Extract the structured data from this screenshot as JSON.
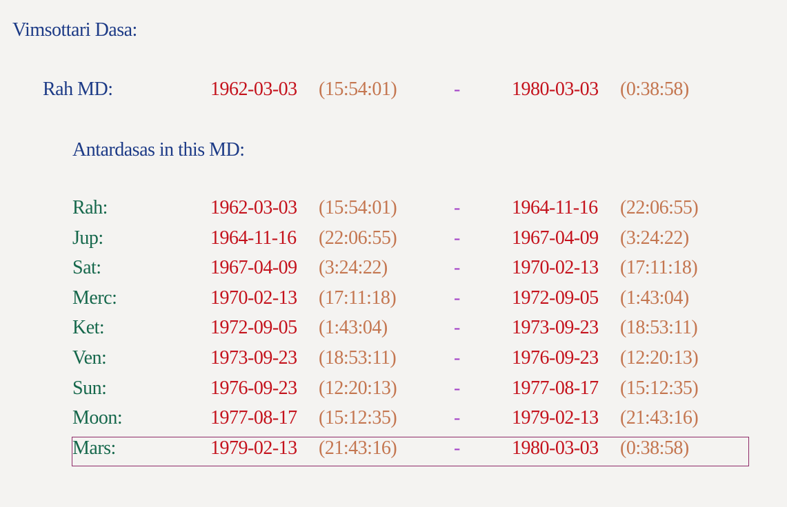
{
  "title": "Vimsottari Dasa:",
  "maha_dasa": {
    "label": "Rah MD:",
    "start_date": "1962-03-03",
    "start_time": "(15:54:01)",
    "separator": "-",
    "end_date": "1980-03-03",
    "end_time": "(0:38:58)"
  },
  "antardasa_heading": "Antardasas in this MD:",
  "antardasas": [
    {
      "label": "Rah:",
      "start_date": "1962-03-03",
      "start_time": "(15:54:01)",
      "separator": "-",
      "end_date": "1964-11-16",
      "end_time": "(22:06:55)"
    },
    {
      "label": "Jup:",
      "start_date": "1964-11-16",
      "start_time": "(22:06:55)",
      "separator": "-",
      "end_date": "1967-04-09",
      "end_time": "(3:24:22)"
    },
    {
      "label": "Sat:",
      "start_date": "1967-04-09",
      "start_time": "(3:24:22)",
      "separator": "-",
      "end_date": "1970-02-13",
      "end_time": "(17:11:18)"
    },
    {
      "label": "Merc:",
      "start_date": "1970-02-13",
      "start_time": "(17:11:18)",
      "separator": "-",
      "end_date": "1972-09-05",
      "end_time": "(1:43:04)"
    },
    {
      "label": "Ket:",
      "start_date": "1972-09-05",
      "start_time": "(1:43:04)",
      "separator": "-",
      "end_date": "1973-09-23",
      "end_time": "(18:53:11)"
    },
    {
      "label": "Ven:",
      "start_date": "1973-09-23",
      "start_time": "(18:53:11)",
      "separator": "-",
      "end_date": "1976-09-23",
      "end_time": "(12:20:13)"
    },
    {
      "label": "Sun:",
      "start_date": "1976-09-23",
      "start_time": "(12:20:13)",
      "separator": "-",
      "end_date": "1977-08-17",
      "end_time": "(15:12:35)"
    },
    {
      "label": "Moon:",
      "start_date": "1977-08-17",
      "start_time": "(15:12:35)",
      "separator": "-",
      "end_date": "1979-02-13",
      "end_time": "(21:43:16)"
    },
    {
      "label": "Mars:",
      "start_date": "1979-02-13",
      "start_time": "(21:43:16)",
      "separator": "-",
      "end_date": "1980-03-03",
      "end_time": "(0:38:58)"
    }
  ]
}
